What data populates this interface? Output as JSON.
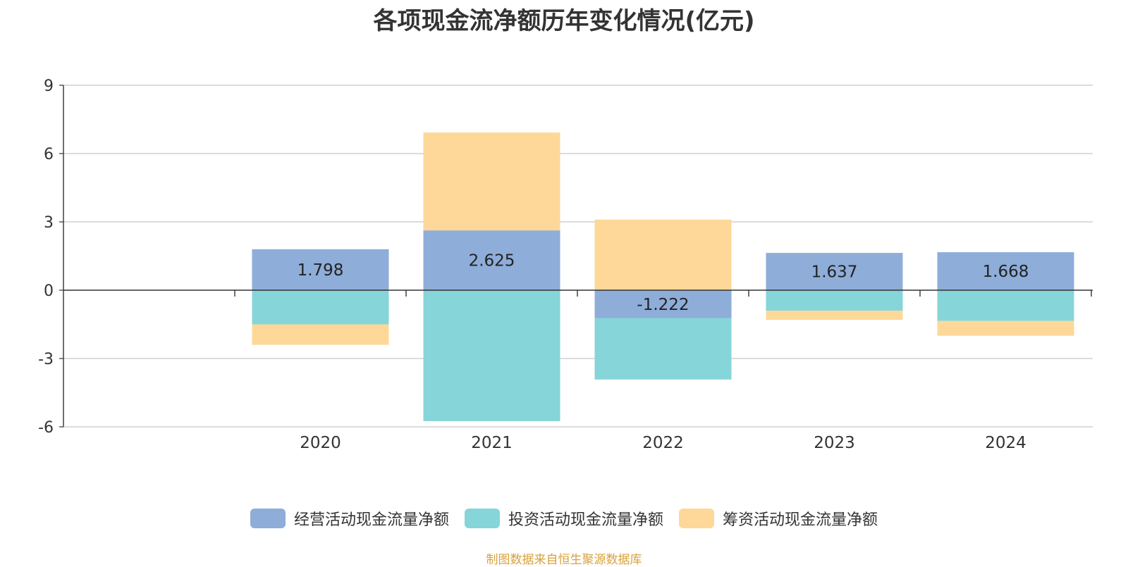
{
  "colors": {
    "operating": "#8eadd9",
    "investing": "#86d5d8",
    "financing": "#fdd899",
    "grid": "#c8c8c8",
    "axis": "#333333",
    "text": "#333333",
    "source": "#d8a23a"
  },
  "chart_data": {
    "type": "bar",
    "stacked": true,
    "title": "各项现金流净额历年变化情况(亿元)",
    "categories": [
      "2020",
      "2021",
      "2022",
      "2023",
      "2024"
    ],
    "ylim": [
      -6,
      9
    ],
    "yticks": [
      -6,
      -3,
      0,
      3,
      6,
      9
    ],
    "grid": true,
    "legend_position": "bottom",
    "series": [
      {
        "name": "经营活动现金流量净额",
        "color_key": "operating",
        "values": [
          1.798,
          2.625,
          -1.222,
          1.637,
          1.668
        ],
        "labels": [
          "1.798",
          "2.625",
          "-1.222",
          "1.637",
          "1.668"
        ]
      },
      {
        "name": "投资活动现金流量净额",
        "color_key": "investing",
        "values": [
          -1.5,
          -5.75,
          -2.7,
          -0.9,
          -1.35
        ]
      },
      {
        "name": "筹资活动现金流量净额",
        "color_key": "financing",
        "values": [
          -0.9,
          4.3,
          3.1,
          -0.4,
          -0.65
        ]
      }
    ],
    "source": "制图数据来自恒生聚源数据库"
  }
}
